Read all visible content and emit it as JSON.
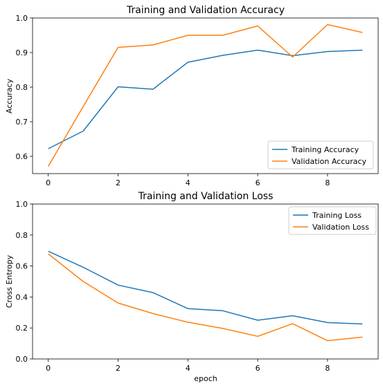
{
  "chart_data": [
    {
      "type": "line",
      "title": "Training and Validation Accuracy",
      "xlabel": "",
      "ylabel": "Accuracy",
      "xlim": [
        -0.45,
        9.45
      ],
      "ylim": [
        0.55,
        1.0
      ],
      "xticks": [
        0,
        2,
        4,
        6,
        8
      ],
      "yticks": [
        0.6,
        0.7,
        0.8,
        0.9,
        1.0
      ],
      "ytick_labels": [
        "0.6",
        "0.7",
        "0.8",
        "0.9",
        "1.0"
      ],
      "x": [
        0,
        1,
        2,
        3,
        4,
        5,
        6,
        7,
        8,
        9
      ],
      "series": [
        {
          "name": "Training Accuracy",
          "color": "#1f77b4",
          "values": [
            0.622,
            0.673,
            0.801,
            0.794,
            0.872,
            0.892,
            0.907,
            0.891,
            0.903,
            0.907
          ]
        },
        {
          "name": "Validation Accuracy",
          "color": "#ff7f0e",
          "values": [
            0.571,
            0.744,
            0.915,
            0.922,
            0.95,
            0.95,
            0.977,
            0.887,
            0.981,
            0.958
          ]
        }
      ],
      "legend": "lower right",
      "grid": false
    },
    {
      "type": "line",
      "title": "Training and Validation Loss",
      "xlabel": "epoch",
      "ylabel": "Cross Entropy",
      "xlim": [
        -0.45,
        9.45
      ],
      "ylim": [
        0.0,
        1.0
      ],
      "xticks": [
        0,
        2,
        4,
        6,
        8
      ],
      "yticks": [
        0.0,
        0.2,
        0.4,
        0.6,
        0.8,
        1.0
      ],
      "ytick_labels": [
        "0.0",
        "0.2",
        "0.4",
        "0.6",
        "0.8",
        "1.0"
      ],
      "x": [
        0,
        1,
        2,
        3,
        4,
        5,
        6,
        7,
        8,
        9
      ],
      "series": [
        {
          "name": "Training Loss",
          "color": "#1f77b4",
          "values": [
            0.695,
            0.592,
            0.477,
            0.428,
            0.325,
            0.311,
            0.25,
            0.279,
            0.235,
            0.226
          ]
        },
        {
          "name": "Validation Loss",
          "color": "#ff7f0e",
          "values": [
            0.678,
            0.5,
            0.361,
            0.293,
            0.237,
            0.197,
            0.146,
            0.228,
            0.118,
            0.141
          ]
        }
      ],
      "legend": "upper right",
      "grid": false
    }
  ]
}
